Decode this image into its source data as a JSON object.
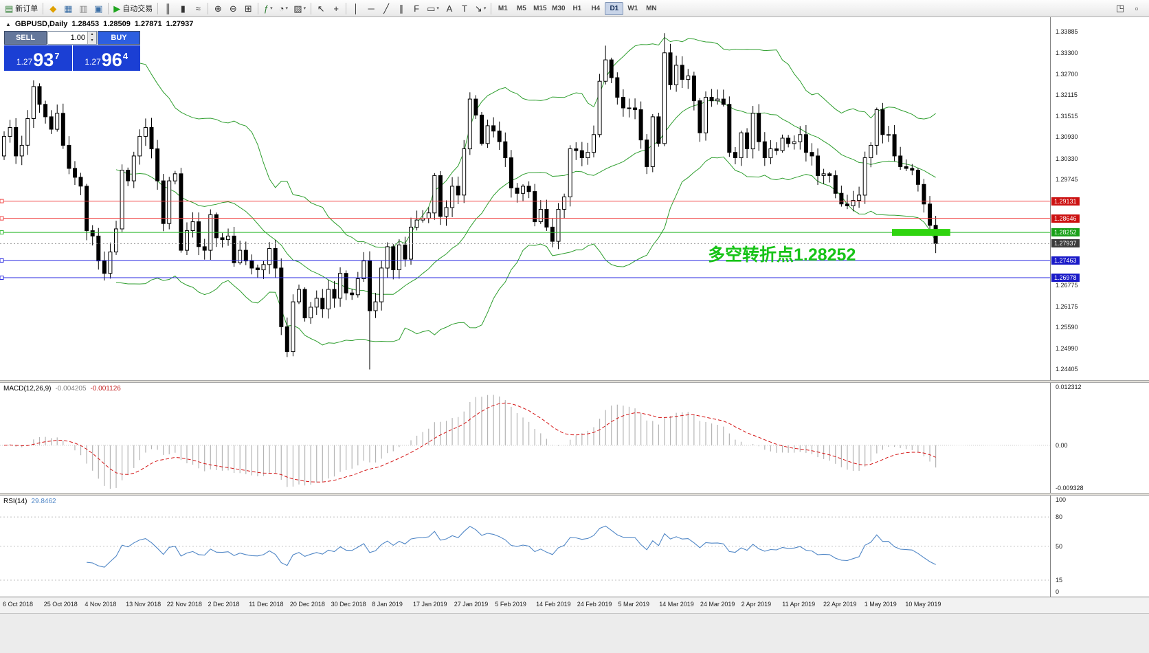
{
  "icons": {
    "spin_up": "▴",
    "spin_down": "▾",
    "collapse": "▲"
  },
  "toolbar": {
    "buttons": [
      {
        "name": "new-order",
        "glyph": "▤",
        "glyph_color": "#2e7d32",
        "label": "新订单"
      },
      {
        "type": "sep"
      },
      {
        "name": "market-watch",
        "glyph": "◆",
        "glyph_color": "#dfa000"
      },
      {
        "name": "data-window",
        "glyph": "▦",
        "glyph_color": "#3a6ea5"
      },
      {
        "name": "navigator",
        "glyph": "▥",
        "glyph_color": "#888888"
      },
      {
        "name": "terminal",
        "glyph": "▣",
        "glyph_color": "#3a6ea5"
      },
      {
        "type": "sep"
      },
      {
        "name": "auto-trading",
        "glyph": "▶",
        "glyph_color": "#1fa51f",
        "label": "自动交易"
      },
      {
        "type": "sep"
      },
      {
        "name": "chart-bars",
        "glyph": "║"
      },
      {
        "name": "chart-candles",
        "glyph": "▮"
      },
      {
        "name": "chart-line",
        "glyph": "≈"
      },
      {
        "type": "sep"
      },
      {
        "name": "zoom-in",
        "glyph": "⊕"
      },
      {
        "name": "zoom-out",
        "glyph": "⊖"
      },
      {
        "name": "tile-windows",
        "glyph": "⊞"
      },
      {
        "type": "sep"
      },
      {
        "name": "indicators",
        "glyph": "ƒ",
        "glyph_color": "#2e7d32",
        "dropdown": true
      },
      {
        "name": "periods",
        "glyph": "◔",
        "dropdown": true
      },
      {
        "name": "templates",
        "glyph": "▨",
        "dropdown": true
      },
      {
        "type": "sep"
      },
      {
        "name": "cursor",
        "glyph": "↖"
      },
      {
        "name": "crosshair",
        "glyph": "+"
      },
      {
        "type": "sep"
      },
      {
        "name": "vertical-line",
        "glyph": "│"
      },
      {
        "name": "horizontal-line",
        "glyph": "─"
      },
      {
        "name": "trendline",
        "glyph": "╱"
      },
      {
        "name": "equidistant-channel",
        "glyph": "∥"
      },
      {
        "name": "fibonacci",
        "glyph": "F"
      },
      {
        "name": "shapes",
        "glyph": "▭",
        "dropdown": true
      },
      {
        "name": "text",
        "glyph": "A"
      },
      {
        "name": "text-label",
        "glyph": "T"
      },
      {
        "name": "arrows",
        "glyph": "↘",
        "dropdown": true
      },
      {
        "type": "sep"
      }
    ],
    "timeframes": [
      "M1",
      "M5",
      "M15",
      "M30",
      "H1",
      "H4",
      "D1",
      "W1",
      "MN"
    ],
    "active_timeframe": "D1",
    "right_buttons": [
      {
        "name": "undock-chart",
        "glyph": "◳"
      },
      {
        "name": "window-menu",
        "glyph": "▫"
      }
    ]
  },
  "trade_panel": {
    "sell_label": "SELL",
    "buy_label": "BUY",
    "volume": "1.00",
    "sell_price": {
      "prefix": "1.27",
      "big": "93",
      "pip": "7"
    },
    "buy_price": {
      "prefix": "1.27",
      "big": "96",
      "pip": "4"
    },
    "colors": {
      "sell_header": "#64779b",
      "buy_header": "#2d5fe0",
      "price_bg": "#1b3fd4"
    }
  },
  "chart": {
    "header": {
      "symbol": "GBPUSD,Daily",
      "o": "1.28453",
      "h": "1.28509",
      "l": "1.27871",
      "c": "1.27937"
    },
    "annotation": {
      "text": "多空转折点1.28252",
      "color": "#17c317"
    }
  },
  "chart_data": {
    "type": "candlestick",
    "symbol": "GBPUSD",
    "period": "Daily",
    "price_scale": {
      "top": 1.343,
      "bottom": 1.241
    },
    "y_ticks": [
      "1.33885",
      "1.33300",
      "1.32700",
      "1.32115",
      "1.31515",
      "1.30930",
      "1.30330",
      "1.29745",
      "1.26775",
      "1.26175",
      "1.25590",
      "1.24990",
      "1.24405"
    ],
    "dates": [
      "6 Oct 2018",
      "25 Oct 2018",
      "4 Nov 2018",
      "13 Nov 2018",
      "22 Nov 2018",
      "2 Dec 2018",
      "11 Dec 2018",
      "20 Dec 2018",
      "30 Dec 2018",
      "8 Jan 2019",
      "17 Jan 2019",
      "27 Jan 2019",
      "5 Feb 2019",
      "14 Feb 2019",
      "24 Feb 2019",
      "5 Mar 2019",
      "14 Mar 2019",
      "24 Mar 2019",
      "2 Apr 2019",
      "11 Apr 2019",
      "22 Apr 2019",
      "1 May 2019",
      "10 May 2019"
    ],
    "candles": {
      "first_open": 1.304,
      "bar_spacing": 8.58,
      "closes": [
        1.3095,
        1.312,
        1.304,
        1.307,
        1.3145,
        1.3235,
        1.3185,
        1.315,
        1.3115,
        1.316,
        1.307,
        1.3005,
        1.298,
        1.2955,
        1.283,
        1.2815,
        1.2745,
        1.271,
        1.277,
        1.2835,
        1.3,
        1.297,
        1.304,
        1.3095,
        1.312,
        1.306,
        1.297,
        1.285,
        1.297,
        1.299,
        1.2775,
        1.283,
        1.2855,
        1.2785,
        1.2775,
        1.2875,
        1.281,
        1.2805,
        1.2815,
        1.274,
        1.2775,
        1.2745,
        1.2725,
        1.272,
        1.2735,
        1.278,
        1.2725,
        1.256,
        1.249,
        1.263,
        1.2665,
        1.2585,
        1.2615,
        1.264,
        1.261,
        1.2665,
        1.264,
        1.271,
        1.2655,
        1.265,
        1.2695,
        1.2745,
        1.2605,
        1.263,
        1.2725,
        1.2785,
        1.272,
        1.279,
        1.275,
        1.284,
        1.286,
        1.2865,
        1.288,
        1.2985,
        1.287,
        1.2895,
        1.2955,
        1.293,
        1.306,
        1.32,
        1.3155,
        1.3075,
        1.3125,
        1.311,
        1.308,
        1.3035,
        1.295,
        1.2935,
        1.2955,
        1.294,
        1.2855,
        1.289,
        1.284,
        1.28,
        1.289,
        1.2925,
        1.306,
        1.3055,
        1.3035,
        1.305,
        1.31,
        1.325,
        1.331,
        1.326,
        1.3205,
        1.3175,
        1.3175,
        1.317,
        1.3085,
        1.301,
        1.315,
        1.3075,
        1.333,
        1.324,
        1.3295,
        1.3255,
        1.3265,
        1.3195,
        1.3105,
        1.3205,
        1.3195,
        1.32,
        1.3185,
        1.305,
        1.3035,
        1.3105,
        1.306,
        1.316,
        1.308,
        1.3035,
        1.306,
        1.3055,
        1.309,
        1.3075,
        1.308,
        1.31,
        1.305,
        1.304,
        1.2985,
        1.299,
        1.2985,
        1.2935,
        1.2905,
        1.29,
        1.2915,
        1.293,
        1.3035,
        1.307,
        1.317,
        1.31,
        1.31,
        1.304,
        1.301,
        1.3005,
        1.3,
        1.296,
        1.2905,
        1.2845,
        1.2794
      ],
      "wick_overrides": {
        "48": {
          "l": 1.2475
        },
        "62": {
          "l": 1.244
        },
        "102": {
          "h": 1.335
        },
        "112": {
          "h": 1.3385
        },
        "148": {
          "h": 1.3176
        }
      }
    },
    "bollinger": {
      "period": 20,
      "deviation": 2,
      "color": "#2e9e2e"
    },
    "levels": [
      {
        "price": 1.29131,
        "label": "1.29131",
        "color": "#f04040",
        "badge_bg": "#cc1111"
      },
      {
        "price": 1.28646,
        "label": "1.28646",
        "color": "#f04040",
        "badge_bg": "#cc1111"
      },
      {
        "price": 1.28252,
        "label": "1.28252",
        "color": "#28b828",
        "badge_bg": "#18a018"
      },
      {
        "price": 1.27463,
        "label": "1.27463",
        "color": "#2828e0",
        "badge_bg": "#1a1ac8"
      },
      {
        "price": 1.26978,
        "label": "1.26978",
        "color": "#2828e0",
        "badge_bg": "#1a1ac8"
      }
    ],
    "current_price": {
      "price": 1.27937,
      "label": "1.27937",
      "badge_bg": "#3c3c3c"
    },
    "highlight": {
      "price": 1.28252,
      "x1_frac": 0.8495,
      "x2_frac": 0.905,
      "color": "#2fd40f"
    },
    "macd": {
      "name": "MACD(12,26,9)",
      "value1": "-0.004205",
      "value2": "-0.001126",
      "scale_top": 0.0127,
      "scale_bottom": -0.0097,
      "axis": [
        {
          "v": 0.012312,
          "label": "0.012312"
        },
        {
          "v": 0,
          "label": "0.00"
        },
        {
          "v": -0.009328,
          "label": "-0.009328"
        }
      ],
      "bar_color": "#b4b4b4",
      "signal_color": "#d41414"
    },
    "rsi": {
      "name": "RSI(14)",
      "value": "29.8462",
      "scale_top": 102,
      "scale_bottom": -2,
      "axis": [
        {
          "v": 100,
          "label": "100"
        },
        {
          "v": 80,
          "label": "80"
        },
        {
          "v": 50,
          "label": "50"
        },
        {
          "v": 15,
          "label": "15"
        },
        {
          "v": 0,
          "label": "0"
        }
      ],
      "levels": [
        80,
        50,
        15
      ],
      "line_color": "#4f86c6"
    }
  }
}
